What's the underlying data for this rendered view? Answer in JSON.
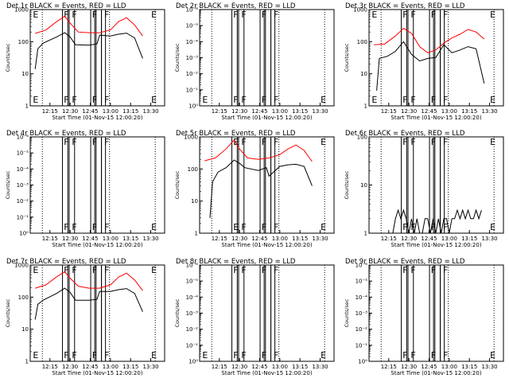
{
  "colors": {
    "events": "#000000",
    "lld": "#ff0000",
    "frame": "#000000"
  },
  "chart_data": [
    {
      "type": "line",
      "title": "Det 1r BLACK = Events, RED = LLD",
      "ylabel": "Counts/sec",
      "xlabel": "Start Time (01-Nov-15 12:00:20)",
      "ylim": [
        1,
        1000
      ],
      "log_y": true,
      "y_ticks": [
        "1",
        "10",
        "100",
        "1000"
      ],
      "x_ticks": [
        "12:15",
        "12:30",
        "12:45",
        "13:00",
        "13:15",
        "13:30"
      ],
      "markers": [
        "E",
        "F",
        "F",
        "F",
        "F",
        "E"
      ],
      "series": [
        {
          "color": "#ff0000",
          "x": [
            "12:04",
            "12:12",
            "12:20",
            "12:26",
            "12:30",
            "12:36",
            "12:44",
            "12:52",
            "13:00",
            "13:06",
            "13:12",
            "13:18",
            "13:24"
          ],
          "y": [
            180,
            230,
            420,
            620,
            380,
            200,
            190,
            190,
            230,
            420,
            560,
            330,
            150
          ]
        },
        {
          "color": "#000000",
          "x": [
            "12:04",
            "12:06",
            "12:10",
            "12:20",
            "12:26",
            "12:30",
            "12:34",
            "12:44",
            "12:50",
            "12:52",
            "13:00",
            "13:06",
            "13:12",
            "13:18",
            "13:24"
          ],
          "y": [
            14,
            60,
            90,
            140,
            190,
            140,
            80,
            78,
            85,
            160,
            150,
            170,
            185,
            130,
            30
          ]
        }
      ]
    },
    {
      "type": "line",
      "title": "Det 2r BLACK = Events, RED = LLD",
      "ylabel": "Counts/sec",
      "xlabel": "Start Time (01-Nov-15 12:00:20)",
      "ylim": [
        1,
        1000000
      ],
      "log_y": true,
      "y_ticks": [
        "10⁰",
        "10⁻¹",
        "10⁻²",
        "10⁻³",
        "10⁻⁴",
        "10⁻⁵",
        "10⁻⁶"
      ],
      "x_ticks": [
        "12:15",
        "12:30",
        "12:45",
        "13:00",
        "13:15",
        "13:30"
      ],
      "markers": [
        "E",
        "F",
        "F",
        "F",
        "F",
        "E"
      ],
      "series": []
    },
    {
      "type": "line",
      "title": "Det 3r BLACK = Events, RED = LLD",
      "ylabel": "Counts/sec",
      "xlabel": "Start Time (01-Nov-15 12:00:20)",
      "ylim": [
        1,
        1000
      ],
      "log_y": true,
      "y_ticks": [
        "1",
        "10",
        "100",
        "1000"
      ],
      "x_ticks": [
        "12:15",
        "12:30",
        "12:45",
        "13:00",
        "13:15",
        "13:30"
      ],
      "markers": [
        "E",
        "F",
        "F",
        "F",
        "F",
        "E"
      ],
      "series": [
        {
          "color": "#ff0000",
          "x": [
            "12:04",
            "12:12",
            "12:20",
            "12:26",
            "12:32",
            "12:38",
            "12:44",
            "12:50",
            "12:56",
            "13:02",
            "13:08",
            "13:14",
            "13:20",
            "13:26"
          ],
          "y": [
            80,
            85,
            150,
            260,
            180,
            70,
            45,
            55,
            90,
            130,
            170,
            240,
            200,
            120
          ]
        },
        {
          "color": "#000000",
          "x": [
            "12:06",
            "12:08",
            "12:14",
            "12:20",
            "12:26",
            "12:32",
            "12:38",
            "12:44",
            "12:50",
            "12:56",
            "13:02",
            "13:08",
            "13:14",
            "13:20",
            "13:26"
          ],
          "y": [
            3,
            30,
            35,
            50,
            100,
            40,
            25,
            30,
            32,
            80,
            45,
            55,
            70,
            60,
            5
          ]
        }
      ]
    },
    {
      "type": "line",
      "title": "Det 4r BLACK = Events, RED = LLD",
      "ylabel": "Counts/sec",
      "xlabel": "Start Time (01-Nov-15 12:00:20)",
      "ylim": [
        1,
        1000000
      ],
      "log_y": true,
      "y_ticks": [
        "10⁰",
        "10⁻¹",
        "10⁻²",
        "10⁻³",
        "10⁻⁴",
        "10⁻⁵",
        "10⁻⁶"
      ],
      "x_ticks": [
        "12:15",
        "12:30",
        "12:45",
        "13:00",
        "13:15",
        "13:30"
      ],
      "markers": [
        "F",
        "F",
        "F",
        "F",
        "E"
      ],
      "series": []
    },
    {
      "type": "line",
      "title": "Det 5r BLACK = Events, RED = LLD",
      "ylabel": "Counts/sec",
      "xlabel": "Start Time (01-Nov-15 12:00:20)",
      "ylim": [
        1,
        1000
      ],
      "log_y": true,
      "y_ticks": [
        "1",
        "10",
        "100",
        "1000"
      ],
      "x_ticks": [
        "12:15",
        "12:30",
        "12:45",
        "13:00",
        "13:15",
        "13:30"
      ],
      "markers": [
        "E",
        "F",
        "F",
        "F",
        "E"
      ],
      "series": [
        {
          "color": "#ff0000",
          "x": [
            "12:04",
            "12:12",
            "12:20",
            "12:26",
            "12:30",
            "12:36",
            "12:44",
            "12:52",
            "13:00",
            "13:06",
            "13:12",
            "13:18",
            "13:24"
          ],
          "y": [
            180,
            220,
            420,
            800,
            420,
            220,
            200,
            220,
            280,
            420,
            560,
            380,
            170
          ]
        },
        {
          "color": "#000000",
          "x": [
            "12:08",
            "12:10",
            "12:14",
            "12:20",
            "12:26",
            "12:30",
            "12:34",
            "12:44",
            "12:50",
            "12:52",
            "13:00",
            "13:06",
            "13:12",
            "13:18",
            "13:24"
          ],
          "y": [
            3,
            40,
            80,
            110,
            190,
            150,
            110,
            90,
            110,
            60,
            120,
            135,
            140,
            120,
            30
          ]
        }
      ]
    },
    {
      "type": "line",
      "title": "Det 6r BLACK = Events, RED = LLD",
      "ylabel": "Counts/sec",
      "xlabel": "Start Time (01-Nov-15 12:00:20)",
      "ylim": [
        1,
        100
      ],
      "log_y": true,
      "y_ticks": [
        "1",
        "10",
        "100"
      ],
      "x_ticks": [
        "12:15",
        "12:30",
        "12:45",
        "13:00",
        "13:15",
        "13:30"
      ],
      "markers": [
        "F",
        "F",
        "F",
        "F",
        "E"
      ],
      "series": [
        {
          "color": "#000000",
          "x": [
            "12:18",
            "12:20",
            "12:22",
            "12:24",
            "12:26",
            "12:28",
            "12:30",
            "12:32",
            "12:34",
            "12:36",
            "12:38",
            "12:40",
            "12:42",
            "12:44",
            "12:46",
            "12:48",
            "12:50",
            "12:52",
            "12:54",
            "12:56",
            "12:58",
            "13:00",
            "13:02",
            "13:04",
            "13:06",
            "13:08",
            "13:10",
            "13:12",
            "13:14",
            "13:16",
            "13:18",
            "13:20",
            "13:22",
            "13:24"
          ],
          "y": [
            1,
            2,
            3,
            2,
            3,
            2,
            1,
            2,
            1,
            2,
            1,
            1,
            2,
            2,
            1,
            2,
            1,
            2,
            1,
            2,
            2,
            1,
            2,
            2,
            3,
            2,
            3,
            2,
            3,
            2,
            2,
            3,
            2,
            3
          ]
        }
      ]
    },
    {
      "type": "line",
      "title": "Det 7r BLACK = Events, RED = LLD",
      "ylabel": "Counts/sec",
      "xlabel": "Start Time (01-Nov-15 12:00:20)",
      "ylim": [
        1,
        1000
      ],
      "log_y": true,
      "y_ticks": [
        "1",
        "10",
        "100",
        "1000"
      ],
      "x_ticks": [
        "12:15",
        "12:30",
        "12:45",
        "13:00",
        "13:15",
        "13:30"
      ],
      "markers": [
        "E",
        "F",
        "F",
        "F",
        "F",
        "E"
      ],
      "series": [
        {
          "color": "#ff0000",
          "x": [
            "12:04",
            "12:12",
            "12:20",
            "12:26",
            "12:30",
            "12:36",
            "12:44",
            "12:52",
            "13:00",
            "13:06",
            "13:12",
            "13:18",
            "13:24"
          ],
          "y": [
            190,
            240,
            430,
            620,
            390,
            220,
            190,
            190,
            240,
            420,
            560,
            340,
            160
          ]
        },
        {
          "color": "#000000",
          "x": [
            "12:04",
            "12:06",
            "12:10",
            "12:20",
            "12:26",
            "12:30",
            "12:34",
            "12:44",
            "12:50",
            "12:52",
            "13:00",
            "13:06",
            "13:12",
            "13:18",
            "13:24"
          ],
          "y": [
            20,
            60,
            80,
            130,
            190,
            140,
            80,
            80,
            85,
            150,
            150,
            170,
            185,
            130,
            35
          ]
        }
      ]
    },
    {
      "type": "line",
      "title": "Det 8r BLACK = Events, RED = LLD",
      "ylabel": "Counts/sec",
      "xlabel": "Start Time (01-Nov-15 12:00:20)",
      "ylim": [
        1,
        1000000
      ],
      "log_y": true,
      "y_ticks": [
        "10⁰",
        "10⁻¹",
        "10⁻²",
        "10⁻³",
        "10⁻⁴",
        "10⁻⁵",
        "10⁻⁶"
      ],
      "x_ticks": [
        "12:15",
        "12:30",
        "12:45",
        "13:00",
        "13:15",
        "13:30"
      ],
      "markers": [
        "E",
        "F",
        "F",
        "F",
        "F",
        "E"
      ],
      "series": []
    },
    {
      "type": "line",
      "title": "Det 9r BLACK = Events, RED = LLD",
      "ylabel": "Counts/sec",
      "xlabel": "Start Time (01-Nov-15 12:00:20)",
      "ylim": [
        1,
        1000000
      ],
      "log_y": true,
      "y_ticks": [
        "10⁰",
        "10⁻¹",
        "10⁻²",
        "10⁻³",
        "10⁻⁴",
        "10⁻⁵",
        "10⁻⁶"
      ],
      "x_ticks": [
        "12:15",
        "12:30",
        "12:45",
        "13:00",
        "13:15",
        "13:30"
      ],
      "markers": [
        "F",
        "F",
        "F",
        "F",
        "E"
      ],
      "series": []
    }
  ]
}
